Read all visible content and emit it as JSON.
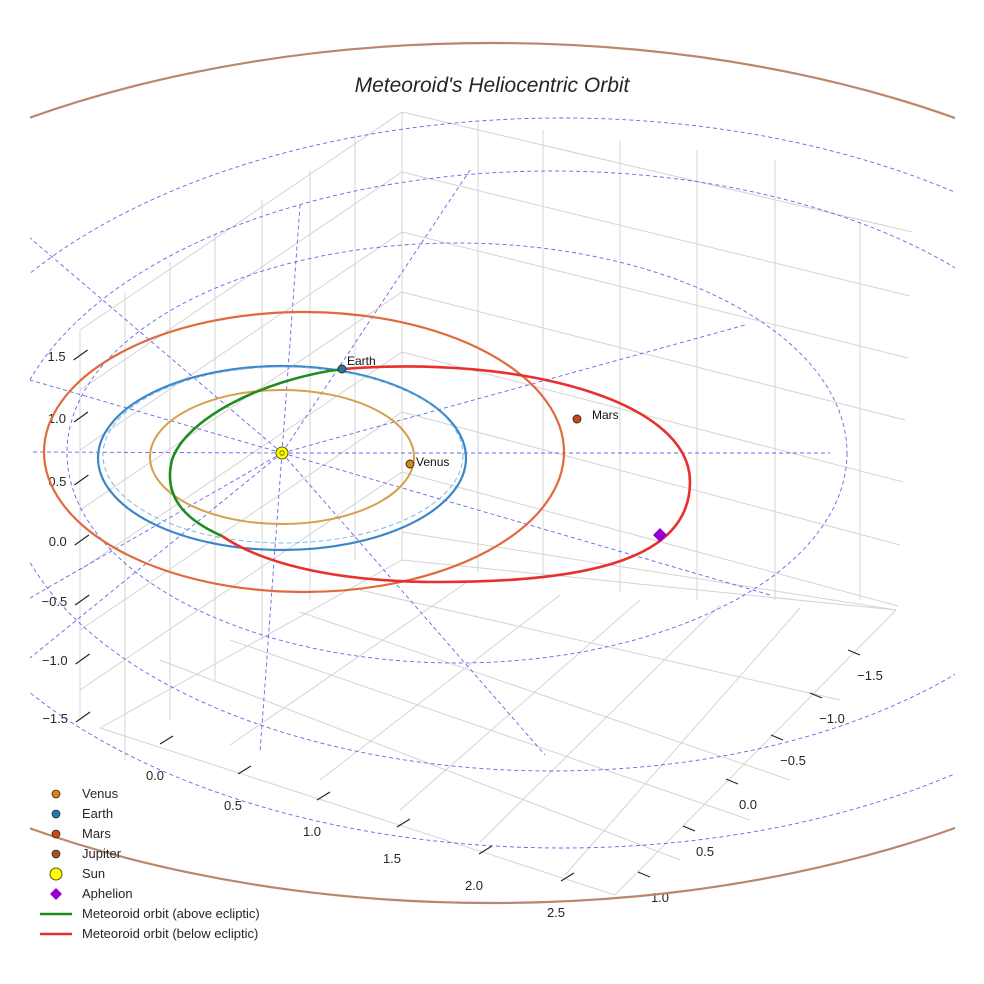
{
  "chart_data": {
    "type": "3d-orbit",
    "title": "Meteoroid's Heliocentric Orbit",
    "x_ticks": [
      "0.0",
      "0.5",
      "1.0",
      "1.5",
      "2.0",
      "2.5"
    ],
    "y_ticks": [
      "−1.5",
      "−1.0",
      "−0.5",
      "0.0",
      "0.5",
      "1.0"
    ],
    "z_ticks": [
      "−1.5",
      "−1.0",
      "−0.5",
      "0.0",
      "0.5",
      "1.0",
      "1.5"
    ],
    "planets": [
      {
        "name": "Venus",
        "label": "Venus",
        "color": "#d1861b",
        "orbit_color": "#d4a04a"
      },
      {
        "name": "Earth",
        "label": "Earth",
        "color": "#1f77b4",
        "orbit_color": "#3a86c8"
      },
      {
        "name": "Mars",
        "label": "Mars",
        "color": "#c9471c",
        "orbit_color": "#e0693e"
      },
      {
        "name": "Jupiter",
        "label": "",
        "color": "#a0522d",
        "orbit_color": "#b9876a"
      }
    ],
    "sun": {
      "name": "Sun",
      "color": "#ffff00"
    },
    "aphelion": {
      "name": "Aphelion",
      "color": "#9400d3"
    },
    "meteoroid": {
      "above": {
        "name": "Meteoroid orbit (above ecliptic)",
        "color": "#1e8c1e"
      },
      "below": {
        "name": "Meteoroid orbit (below ecliptic)",
        "color": "#e8302f"
      }
    },
    "ecliptic_grid_color": "#4a4ae8",
    "grid": true,
    "legend_position": "lower-left",
    "legend": [
      {
        "label": "Venus",
        "marker": "circle",
        "color": "#d1861b"
      },
      {
        "label": "Earth",
        "marker": "circle",
        "color": "#1f77b4"
      },
      {
        "label": "Mars",
        "marker": "circle",
        "color": "#c9471c"
      },
      {
        "label": "Jupiter",
        "marker": "circle",
        "color": "#a0522d"
      },
      {
        "label": "Sun",
        "marker": "big-circle",
        "color": "#ffff00"
      },
      {
        "label": "Aphelion",
        "marker": "diamond",
        "color": "#9400d3"
      },
      {
        "label": "Meteoroid orbit (above ecliptic)",
        "marker": "line",
        "color": "#1e8c1e"
      },
      {
        "label": "Meteoroid orbit (below ecliptic)",
        "marker": "line",
        "color": "#e8302f"
      }
    ]
  }
}
